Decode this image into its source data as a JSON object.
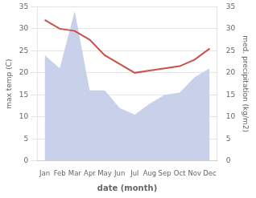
{
  "chart_data": {
    "type": "line",
    "categories": [
      "Jan",
      "Feb",
      "Mar",
      "Apr",
      "May",
      "Jun",
      "Jul",
      "Aug",
      "Sep",
      "Oct",
      "Nov",
      "Dec"
    ],
    "series": [
      {
        "type": "area",
        "color": "#c8d0ea",
        "axis": "y2",
        "values": [
          24,
          21,
          34,
          16,
          16,
          12,
          10.5,
          13,
          15,
          15.5,
          19,
          21
        ]
      },
      {
        "type": "line",
        "color": "#c8524a",
        "values": [
          32,
          30,
          29.5,
          27.5,
          24,
          22,
          20,
          20.5,
          21,
          21.5,
          23,
          25.5
        ]
      }
    ],
    "xlabel": "date (month)",
    "ylabel": "max temp (C)",
    "y2label": "med. precipitation (kg/m2)",
    "ylim": [
      0,
      35
    ],
    "yticks": [
      0,
      5,
      10,
      15,
      20,
      25,
      30,
      35
    ],
    "y2lim": [
      0,
      35
    ],
    "y2ticks": [
      0,
      5,
      10,
      15,
      20,
      25,
      30,
      35
    ],
    "grid": true
  }
}
